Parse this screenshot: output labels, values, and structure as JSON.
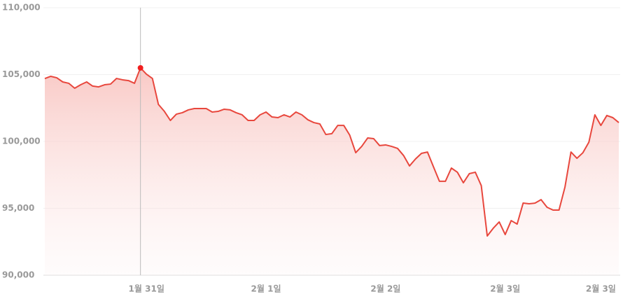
{
  "chart_data": {
    "type": "line",
    "categories": [
      null,
      null,
      null,
      null,
      null,
      null,
      null,
      null,
      null,
      null,
      null,
      null,
      null,
      null,
      null,
      null,
      null,
      "1월 31일",
      null,
      null,
      null,
      null,
      null,
      null,
      null,
      null,
      null,
      null,
      null,
      null,
      null,
      null,
      null,
      null,
      null,
      null,
      null,
      "2월 1일",
      null,
      null,
      null,
      null,
      null,
      null,
      null,
      null,
      null,
      null,
      null,
      null,
      null,
      null,
      null,
      null,
      null,
      null,
      null,
      "2월 2일",
      null,
      null,
      null,
      null,
      null,
      null,
      null,
      null,
      null,
      null,
      null,
      null,
      null,
      null,
      null,
      null,
      null,
      null,
      null,
      "2월 3일",
      null,
      null,
      null,
      null,
      null,
      null,
      null,
      null,
      null,
      null,
      null,
      null,
      null,
      null,
      null,
      "2월 3일",
      null,
      null,
      null
    ],
    "series": [
      {
        "color": "#e8473d",
        "values": [
          104700,
          104870,
          104760,
          104450,
          104350,
          103980,
          104240,
          104450,
          104140,
          104080,
          104240,
          104290,
          104710,
          104610,
          104550,
          104350,
          105500,
          105030,
          104710,
          102770,
          102250,
          101570,
          102040,
          102150,
          102360,
          102460,
          102460,
          102460,
          102200,
          102250,
          102410,
          102360,
          102150,
          101990,
          101570,
          101570,
          101990,
          102200,
          101830,
          101780,
          101990,
          101830,
          102200,
          101990,
          101620,
          101410,
          101310,
          100520,
          100580,
          101200,
          101200,
          100470,
          99160,
          99630,
          100260,
          100210,
          99690,
          99740,
          99630,
          99480,
          98950,
          98170,
          98690,
          99110,
          99210,
          98110,
          97020,
          97020,
          98010,
          97700,
          96910,
          97590,
          97700,
          96700,
          92930,
          93510,
          93980,
          93040,
          94080,
          93820,
          95390,
          95340,
          95390,
          95650,
          95080,
          94870,
          94870,
          96600,
          99210,
          98740,
          99160,
          99950,
          101990,
          101200,
          101940,
          101780,
          101410
        ]
      }
    ],
    "highlight": 16,
    "ylim": [
      90000,
      110000
    ],
    "yticks": [
      {
        "value": 90000,
        "label": "90,000"
      },
      {
        "value": 95000,
        "label": "95,000"
      },
      {
        "value": 100000,
        "label": "100,000"
      },
      {
        "value": 105000,
        "label": "105,000"
      },
      {
        "value": 110000,
        "label": "110,000"
      }
    ],
    "grid": true
  }
}
